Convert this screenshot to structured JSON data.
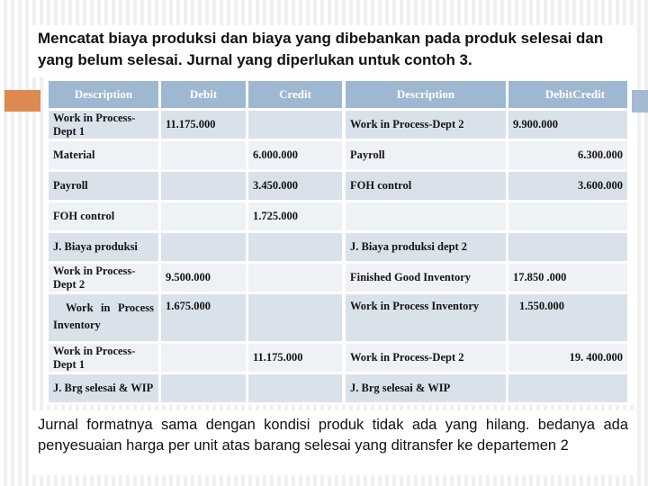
{
  "title": "Mencatat biaya produksi dan biaya yang dibebankan pada produk selesai dan yang belum selesai. Jurnal yang diperlukan untuk contoh 3.",
  "footer_note": "Jurnal formatnya sama dengan kondisi produk tidak ada yang hilang. bedanya ada penyesuaian harga per unit atas barang selesai yang ditransfer ke departemen 2",
  "colors": {
    "header_blue": "#9fb8d1",
    "row_mid": "#d9e1eb",
    "row_light": "#eef1f6",
    "accent_orange": "#dc8a51",
    "stripe_gray": "#f0f0f0"
  },
  "left_table": {
    "headers": {
      "description": "Description",
      "debit": "Debit",
      "credit": "Credit"
    },
    "rows": [
      {
        "description": "Work in Process-Dept 1",
        "debit": "11.175.000",
        "credit": ""
      },
      {
        "description": "Material",
        "debit": "",
        "credit": "6.000.000"
      },
      {
        "description": "Payroll",
        "debit": "",
        "credit": "3.450.000"
      },
      {
        "description": "FOH control",
        "debit": "",
        "credit": "1.725.000"
      },
      {
        "description": "J. Biaya produksi",
        "debit": "",
        "credit": ""
      },
      {
        "description": "Work in Process-Dept 2",
        "debit": "9.500.000",
        "credit": ""
      },
      {
        "description": "Work in Process Inventory",
        "debit": "1.675.000",
        "credit": ""
      },
      {
        "description": "Work in Process-Dept 1",
        "debit": "",
        "credit": "11.175.000"
      },
      {
        "description": "J. Brg selesai & WIP",
        "debit": "",
        "credit": ""
      }
    ]
  },
  "right_table": {
    "headers": {
      "description": "Description",
      "debit": "Debit",
      "credit": "Credit"
    },
    "rows": [
      {
        "description": "Work in Process-Dept 2",
        "debit": "9.900.000",
        "credit": ""
      },
      {
        "description": "Payroll",
        "debit": "",
        "credit": "6.300.000"
      },
      {
        "description": "FOH control",
        "debit": "",
        "credit": "3.600.000"
      },
      {
        "description": "",
        "debit": "",
        "credit": ""
      },
      {
        "description": "J. Biaya produksi dept 2",
        "debit": "",
        "credit": ""
      },
      {
        "description": "Finished Good Inventory",
        "debit": "17.850 .000",
        "credit": ""
      },
      {
        "description": "Work in Process Inventory",
        "debit": "1.550.000",
        "credit": ""
      },
      {
        "description": "Work in Process-Dept 2",
        "debit": "",
        "credit": "19. 400.000"
      },
      {
        "description": "J. Brg selesai & WIP",
        "debit": "",
        "credit": ""
      }
    ]
  }
}
